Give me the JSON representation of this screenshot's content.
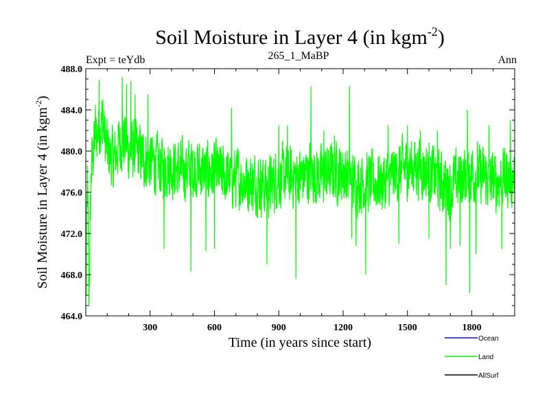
{
  "chart_data": {
    "type": "line",
    "title": "Soil Moisture in Layer 4 (in kgm",
    "title_exponent": "-2",
    "title_suffix": ")",
    "subtitle_left": "Expt = teYdb",
    "subtitle_center": "265_1_MaBP",
    "subtitle_right": "Ann",
    "xlabel": "Time (in years since start)",
    "ylabel": "Soil Moisture in Layer 4 (in kgm",
    "ylabel_exponent": "-2",
    "ylabel_suffix": ")",
    "xlim": [
      0,
      2000
    ],
    "ylim": [
      464.0,
      488.0
    ],
    "x_ticks": [
      300,
      600,
      900,
      1200,
      1500,
      1800
    ],
    "x_tick_labels": [
      "300",
      "600",
      "900",
      "1200",
      "1500",
      "1800"
    ],
    "y_ticks": [
      464,
      468,
      472,
      476,
      480,
      484,
      488
    ],
    "y_tick_labels": [
      "464.0",
      "468.0",
      "472.0",
      "476.0",
      "480.0",
      "484.0",
      "488.0"
    ],
    "grid": false,
    "legend": [
      {
        "name": "Ocean",
        "color": "#0000ff"
      },
      {
        "name": "Land",
        "color": "#00ff00"
      },
      {
        "name": "AllSurf",
        "color": "#000000"
      }
    ],
    "series": [
      {
        "name": "Land",
        "color": "#00ff00",
        "x_start": 0,
        "x_step": 1,
        "count": 2000,
        "anchors": [
          [
            0,
            467.0
          ],
          [
            8,
            477.0
          ],
          [
            15,
            466.0
          ],
          [
            25,
            478.0
          ],
          [
            40,
            481.0
          ],
          [
            60,
            482.0
          ],
          [
            75,
            483.0
          ],
          [
            100,
            480.0
          ],
          [
            130,
            479.0
          ],
          [
            160,
            481.0
          ],
          [
            180,
            481.0
          ],
          [
            200,
            480.0
          ],
          [
            230,
            480.0
          ],
          [
            260,
            479.5
          ],
          [
            300,
            479.0
          ],
          [
            350,
            478.5
          ],
          [
            400,
            478.5
          ],
          [
            450,
            478.0
          ],
          [
            500,
            478.5
          ],
          [
            550,
            478.0
          ],
          [
            600,
            478.0
          ],
          [
            650,
            477.5
          ],
          [
            700,
            477.5
          ],
          [
            750,
            477.0
          ],
          [
            800,
            477.0
          ],
          [
            850,
            476.5
          ],
          [
            900,
            477.5
          ],
          [
            950,
            477.5
          ],
          [
            1000,
            477.5
          ],
          [
            1050,
            478.0
          ],
          [
            1100,
            477.5
          ],
          [
            1150,
            478.0
          ],
          [
            1200,
            478.0
          ],
          [
            1250,
            477.0
          ],
          [
            1300,
            477.0
          ],
          [
            1350,
            477.0
          ],
          [
            1400,
            477.0
          ],
          [
            1450,
            478.0
          ],
          [
            1500,
            478.5
          ],
          [
            1550,
            478.5
          ],
          [
            1600,
            478.0
          ],
          [
            1650,
            477.0
          ],
          [
            1700,
            476.5
          ],
          [
            1750,
            477.5
          ],
          [
            1800,
            478.0
          ],
          [
            1850,
            477.5
          ],
          [
            1900,
            477.0
          ],
          [
            1950,
            477.5
          ],
          [
            1999,
            477.5
          ]
        ],
        "noise_amplitude": 2.6,
        "peaks": [
          [
            2,
            466.0
          ],
          [
            14,
            466.0
          ],
          [
            45,
            484.5
          ],
          [
            62,
            486.9
          ],
          [
            80,
            485.0
          ],
          [
            170,
            487.2
          ],
          [
            190,
            486.5
          ],
          [
            210,
            486.8
          ],
          [
            230,
            485.5
          ],
          [
            290,
            485.5
          ],
          [
            365,
            470.5
          ],
          [
            490,
            468.3
          ],
          [
            560,
            470.3
          ],
          [
            600,
            470.5
          ],
          [
            680,
            484.2
          ],
          [
            845,
            469.0
          ],
          [
            900,
            482.5
          ],
          [
            940,
            482.5
          ],
          [
            980,
            467.6
          ],
          [
            1050,
            486.3
          ],
          [
            1110,
            482.0
          ],
          [
            1160,
            481.5
          ],
          [
            1230,
            486.3
          ],
          [
            1240,
            471.5
          ],
          [
            1260,
            470.8
          ],
          [
            1305,
            468.0
          ],
          [
            1410,
            482.5
          ],
          [
            1460,
            471.0
          ],
          [
            1500,
            482.5
          ],
          [
            1560,
            482.0
          ],
          [
            1600,
            471.5
          ],
          [
            1640,
            482.0
          ],
          [
            1680,
            467.0
          ],
          [
            1700,
            470.5
          ],
          [
            1745,
            470.8
          ],
          [
            1780,
            484.0
          ],
          [
            1790,
            466.2
          ],
          [
            1820,
            470.0
          ],
          [
            1880,
            482.5
          ],
          [
            1940,
            470.5
          ],
          [
            1980,
            483.0
          ]
        ]
      }
    ]
  }
}
